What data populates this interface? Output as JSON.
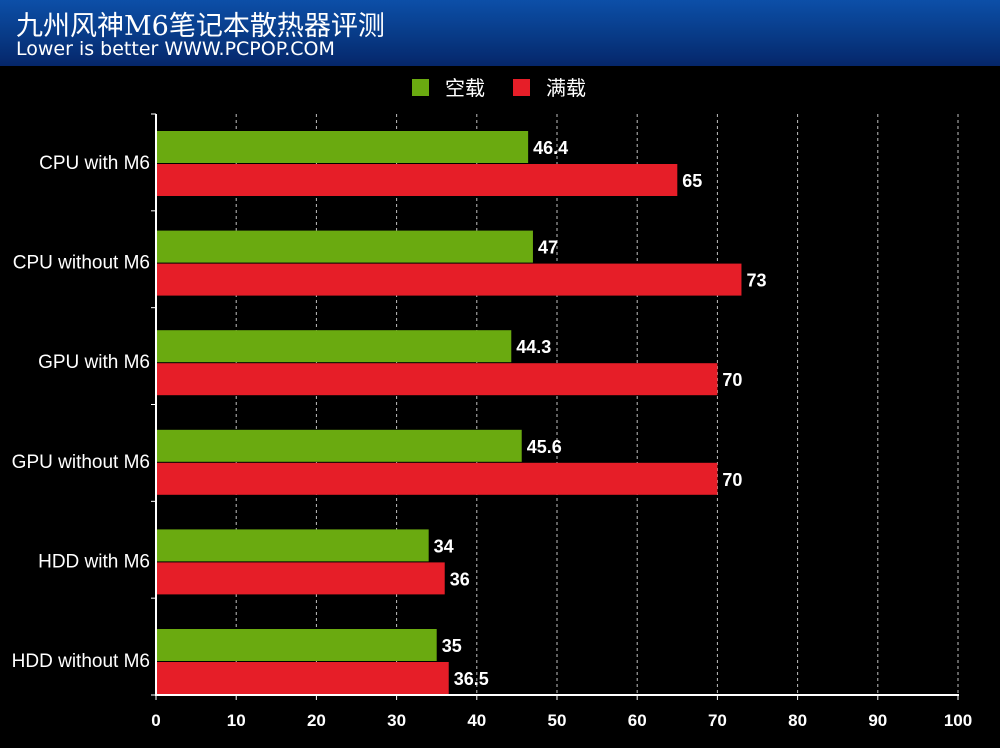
{
  "header": {
    "title": "九州风神M6笔记本散热器评测",
    "subtitle": "Lower is better WWW.PCPOP.COM"
  },
  "chart_data": {
    "type": "bar",
    "orientation": "horizontal",
    "title": "九州风神M6笔记本散热器评测",
    "subtitle": "Lower is better WWW.PCPOP.COM",
    "categories": [
      "CPU with M6",
      "CPU without M6",
      "GPU with M6",
      "GPU without M6",
      "HDD with M6",
      "HDD without M6"
    ],
    "series": [
      {
        "name": "空载",
        "color": "#6aaa10",
        "values": [
          46.4,
          47,
          44.3,
          45.6,
          34,
          35
        ],
        "labels": [
          "46.4",
          "47",
          "44.3",
          "45.6",
          "34",
          "35"
        ]
      },
      {
        "name": "满载",
        "color": "#e61e28",
        "values": [
          65,
          73,
          70,
          70,
          36,
          36.5
        ],
        "labels": [
          "65",
          "73",
          "70",
          "70",
          "36",
          "36.5"
        ]
      }
    ],
    "xlim": [
      0,
      100
    ],
    "xticks": [
      0,
      10,
      20,
      30,
      40,
      50,
      60,
      70,
      80,
      90,
      100
    ],
    "grid": "vertical dashed",
    "legend_position": "top-center"
  }
}
